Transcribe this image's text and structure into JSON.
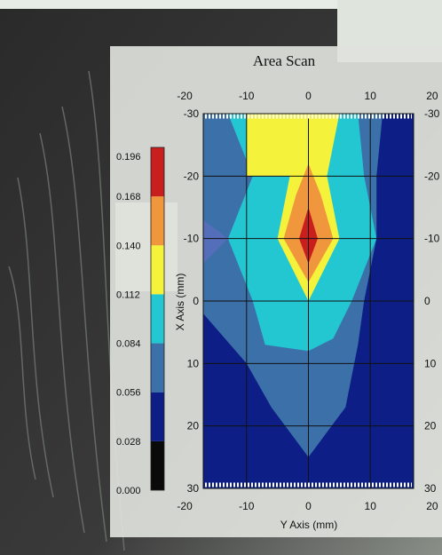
{
  "chart_data": {
    "type": "heatmap",
    "title": "Area Scan",
    "xlabel": "Y Axis (mm)",
    "ylabel": "X Axis (mm)",
    "x_ticks": [
      -20,
      -10,
      0,
      10,
      20
    ],
    "y_ticks": [
      -30,
      -20,
      -10,
      0,
      10,
      20,
      30
    ],
    "x_tick_labels": [
      "-20",
      "-10",
      "0",
      "10",
      "20"
    ],
    "y_tick_labels": [
      "-30",
      "-20",
      "-10",
      "0",
      "10",
      "20",
      "30"
    ],
    "xlim": [
      -17,
      17
    ],
    "ylim": [
      -30,
      30
    ],
    "y_inverted": true,
    "grid": true,
    "colorbar": {
      "levels": [
        0.0,
        0.028,
        0.056,
        0.084,
        0.112,
        0.14,
        0.168,
        0.196
      ],
      "labels": [
        "0.000",
        "0.028",
        "0.056",
        "0.084",
        "0.112",
        "0.140",
        "0.168",
        "0.196"
      ],
      "colors": [
        "#0a0a0a",
        "#0d1f86",
        "#3c70a8",
        "#22c7d2",
        "#f5f23c",
        "#f0963c",
        "#c81e1e"
      ],
      "placement": "left"
    },
    "contours": [
      {
        "level": 0.028,
        "color": "#0d1f86",
        "points": [
          [
            -17,
            -30
          ],
          [
            17,
            -30
          ],
          [
            17,
            30
          ],
          [
            -17,
            30
          ]
        ]
      },
      {
        "level": 0.056,
        "color": "#3c70a8",
        "points": [
          [
            -17,
            -30
          ],
          [
            12,
            -30
          ],
          [
            11,
            -20
          ],
          [
            11,
            -10
          ],
          [
            9,
            0
          ],
          [
            8,
            7
          ],
          [
            6,
            17
          ],
          [
            0,
            25
          ],
          [
            -6,
            17
          ],
          [
            -10,
            10
          ],
          [
            -17,
            2
          ]
        ]
      },
      {
        "level": 0.084,
        "color": "#22c7d2",
        "points": [
          [
            -13,
            -30
          ],
          [
            8,
            -30
          ],
          [
            9,
            -20
          ],
          [
            11,
            -10
          ],
          [
            7,
            0
          ],
          [
            4,
            6
          ],
          [
            0,
            8
          ],
          [
            -7,
            7
          ],
          [
            -9,
            0
          ],
          [
            -13,
            -10
          ],
          [
            -9,
            -20
          ]
        ]
      },
      {
        "level": 0.112,
        "color": "#f5f23c",
        "points": [
          [
            -10,
            -30
          ],
          [
            5,
            -30
          ],
          [
            3,
            -20
          ],
          [
            5,
            -10
          ],
          [
            0,
            0
          ],
          [
            -5,
            -10
          ],
          [
            -3,
            -20
          ],
          [
            -10,
            -20
          ]
        ]
      },
      {
        "level": 0.14,
        "color": "#f0963c",
        "points": [
          [
            0,
            -22
          ],
          [
            2,
            -17
          ],
          [
            4,
            -10
          ],
          [
            0,
            -3
          ],
          [
            -4,
            -10
          ],
          [
            -2,
            -17
          ]
        ]
      },
      {
        "level": 0.168,
        "color": "#c81e1e",
        "points": [
          [
            0,
            -15
          ],
          [
            1.5,
            -10
          ],
          [
            0,
            -6
          ],
          [
            -1.5,
            -10
          ]
        ]
      }
    ],
    "overlay_patches": [
      {
        "color": "#5a6ebe",
        "points": [
          [
            -17,
            -13
          ],
          [
            -13,
            -10
          ],
          [
            -17,
            -6
          ]
        ]
      }
    ]
  }
}
